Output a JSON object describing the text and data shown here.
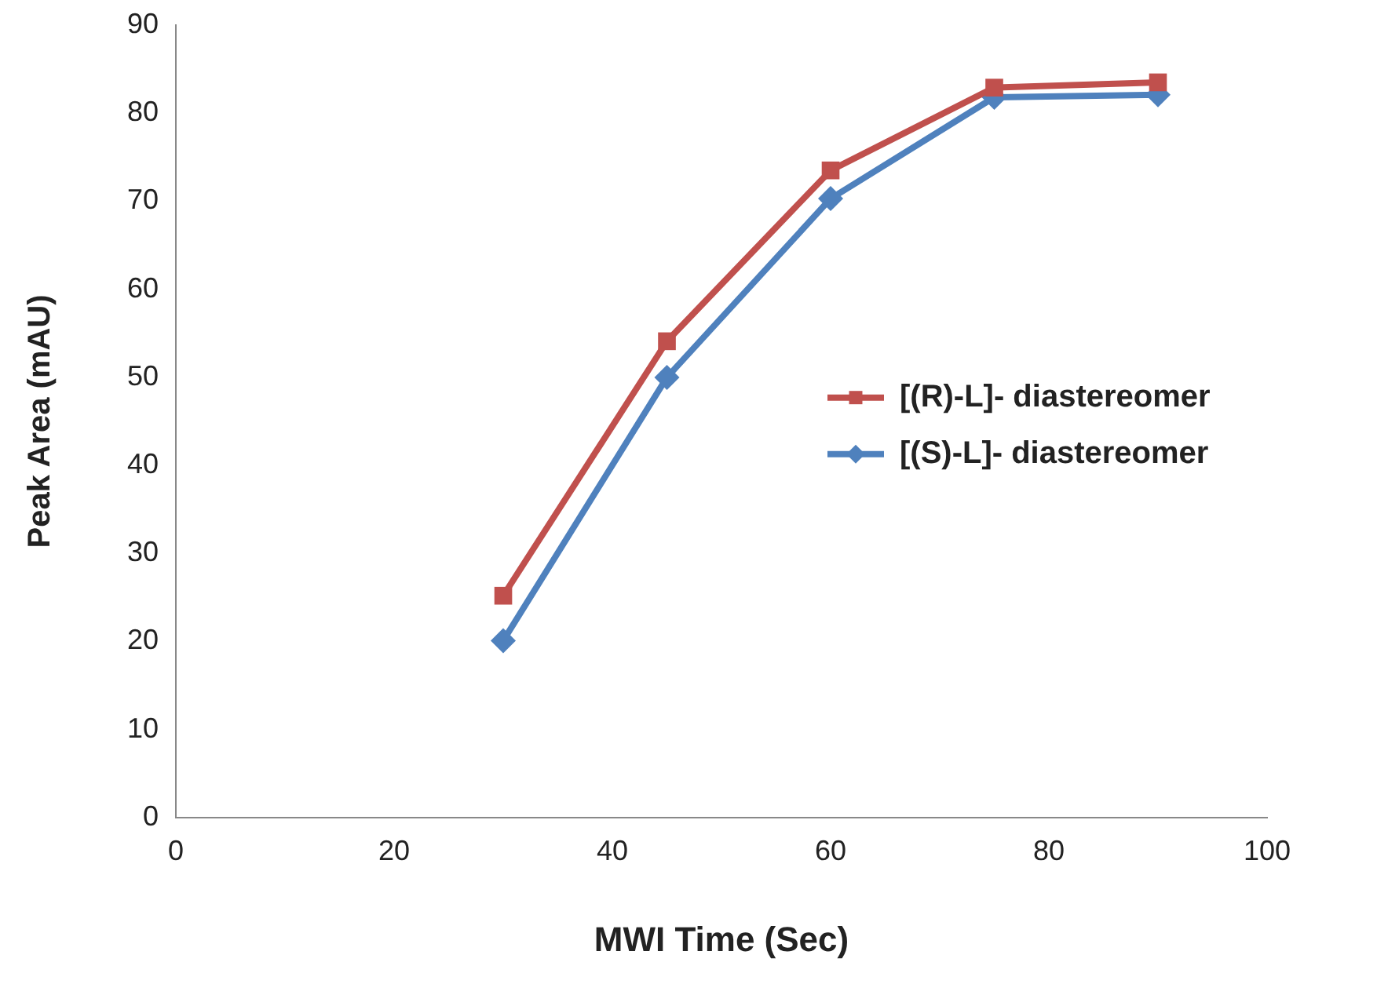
{
  "chart_data": {
    "type": "line",
    "xlabel": "MWI Time (Sec)",
    "ylabel": "Peak Area (mAU)",
    "x": [
      30,
      45,
      60,
      75,
      90
    ],
    "series": [
      {
        "name": "[(R)-L]- diastereomer",
        "color": "#c0504d",
        "marker": "square",
        "values": [
          25.2,
          54.1,
          73.5,
          82.9,
          83.5
        ]
      },
      {
        "name": "[(S)-L]- diastereomer",
        "color": "#4f81bd",
        "marker": "diamond",
        "values": [
          20.1,
          50,
          70.3,
          81.8,
          82.1
        ]
      }
    ],
    "xlim": [
      0,
      100
    ],
    "xticks": [
      0,
      20,
      40,
      60,
      80,
      100
    ],
    "ylim": [
      0,
      90
    ],
    "yticks": [
      0,
      10,
      20,
      30,
      40,
      50,
      60,
      70,
      80,
      90
    ],
    "grid": false,
    "legend": "right"
  }
}
